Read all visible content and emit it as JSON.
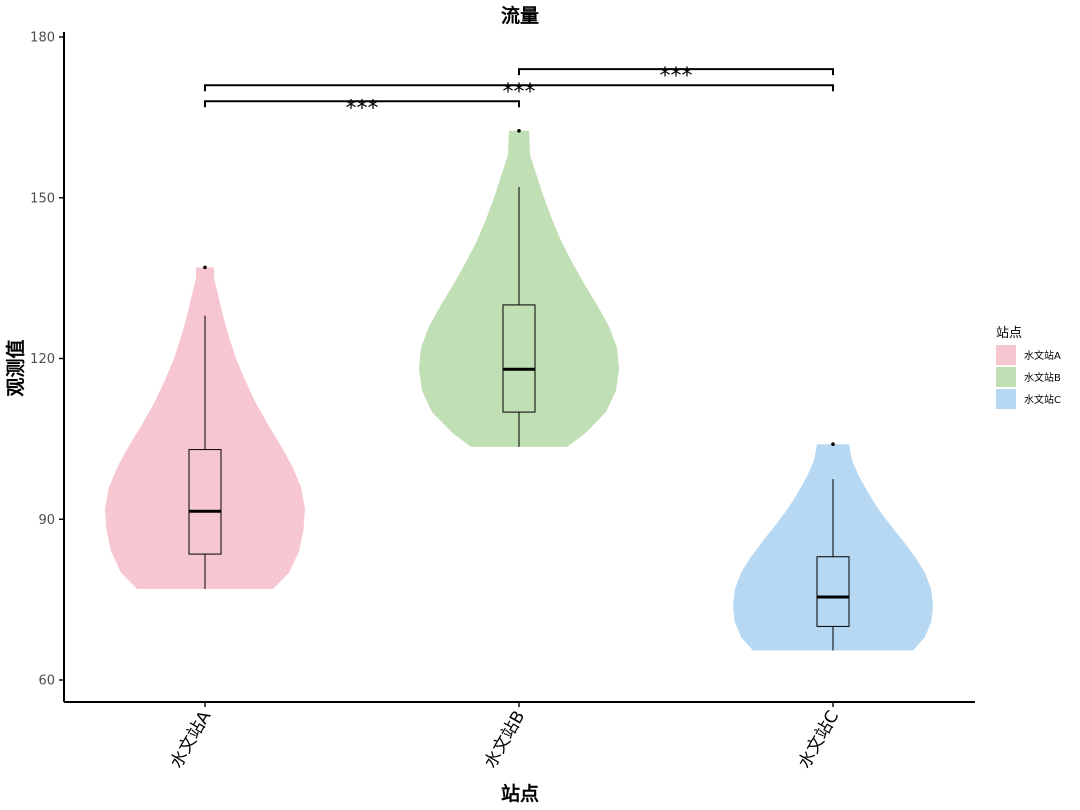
{
  "chart_data": {
    "type": "violin",
    "title": "流量",
    "xlabel": "站点",
    "ylabel": "观测值",
    "ylim": [
      56,
      181
    ],
    "yticks": [
      60,
      90,
      120,
      150,
      180
    ],
    "categories": [
      "水文站A",
      "水文站B",
      "水文站C"
    ],
    "legend": {
      "title": "站点",
      "position": "right",
      "entries": [
        "水文站A",
        "水文站B",
        "水文站C"
      ]
    },
    "colors": [
      "#f6c7d1",
      "#c1dfb5",
      "#b7d8f2"
    ],
    "groups": [
      {
        "name": "水文站A",
        "min": 77,
        "max": 137,
        "box": {
          "whisker_low": 77,
          "q1": 83.5,
          "median": 91.5,
          "q3": 103,
          "whisker_high": 128
        },
        "outliers": [
          137
        ],
        "density": [
          [
            77,
            0.68
          ],
          [
            80,
            0.84
          ],
          [
            84,
            0.94
          ],
          [
            88,
            0.985
          ],
          [
            92,
            1.0
          ],
          [
            96,
            0.96
          ],
          [
            100,
            0.87
          ],
          [
            104,
            0.75
          ],
          [
            108,
            0.62
          ],
          [
            112,
            0.5
          ],
          [
            116,
            0.4
          ],
          [
            120,
            0.31
          ],
          [
            124,
            0.24
          ],
          [
            128,
            0.18
          ],
          [
            132,
            0.13
          ],
          [
            135,
            0.09
          ],
          [
            137,
            0.09
          ]
        ]
      },
      {
        "name": "水文站B",
        "min": 103.5,
        "max": 162.5,
        "box": {
          "whisker_low": 103.5,
          "q1": 110,
          "median": 118,
          "q3": 130,
          "whisker_high": 152
        },
        "outliers": [
          162.5
        ],
        "density": [
          [
            103.5,
            0.48
          ],
          [
            106,
            0.66
          ],
          [
            110,
            0.87
          ],
          [
            114,
            0.97
          ],
          [
            118,
            1.0
          ],
          [
            122,
            0.98
          ],
          [
            126,
            0.9
          ],
          [
            130,
            0.78
          ],
          [
            134,
            0.65
          ],
          [
            138,
            0.53
          ],
          [
            142,
            0.42
          ],
          [
            146,
            0.33
          ],
          [
            150,
            0.25
          ],
          [
            154,
            0.18
          ],
          [
            158,
            0.11
          ],
          [
            162.5,
            0.1
          ]
        ]
      },
      {
        "name": "水文站C",
        "min": 65.5,
        "max": 104,
        "box": {
          "whisker_low": 65.5,
          "q1": 70,
          "median": 75.5,
          "q3": 83,
          "whisker_high": 97.5
        },
        "outliers": [
          104
        ],
        "density": [
          [
            65.5,
            0.8
          ],
          [
            68,
            0.92
          ],
          [
            71,
            0.985
          ],
          [
            74,
            1.0
          ],
          [
            77,
            0.98
          ],
          [
            80,
            0.92
          ],
          [
            83,
            0.82
          ],
          [
            86,
            0.7
          ],
          [
            89,
            0.57
          ],
          [
            92,
            0.45
          ],
          [
            95,
            0.35
          ],
          [
            98,
            0.26
          ],
          [
            101,
            0.19
          ],
          [
            104,
            0.16
          ]
        ]
      }
    ],
    "significance": [
      {
        "from": 0,
        "to": 1,
        "label": "***",
        "y": 168
      },
      {
        "from": 0,
        "to": 2,
        "label": "***",
        "y": 171
      },
      {
        "from": 1,
        "to": 2,
        "label": "***",
        "y": 174
      }
    ]
  }
}
